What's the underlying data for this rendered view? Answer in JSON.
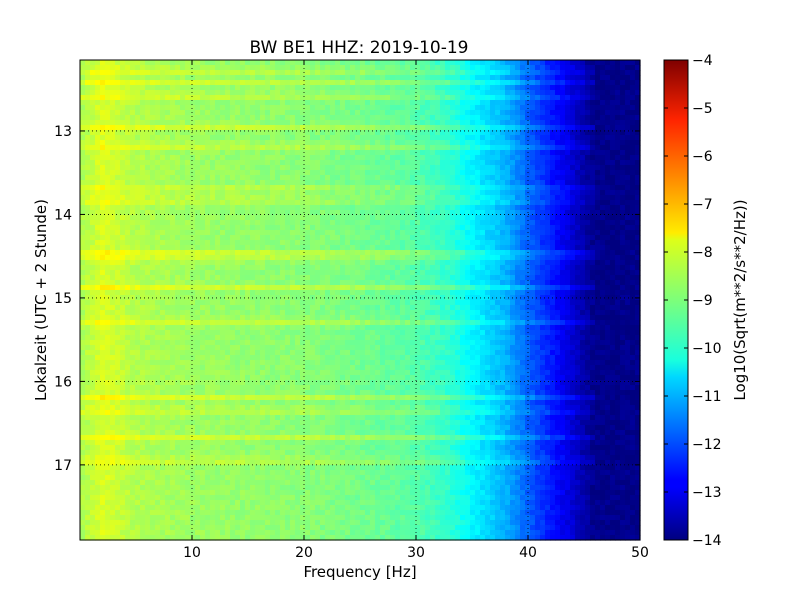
{
  "chart_data": {
    "type": "heatmap",
    "title": "BW BE1 HHZ: 2019-10-19",
    "xlabel": "Frequency [Hz]",
    "ylabel": "Lokalzeit (UTC + 2 Stunde)",
    "xlim": [
      0,
      50
    ],
    "ylim": [
      12.15,
      17.9
    ],
    "y_inverted": true,
    "x_ticks": [
      10,
      20,
      30,
      40,
      50
    ],
    "y_ticks": [
      13,
      14,
      15,
      16,
      17
    ],
    "x_tick_labels": [
      "10",
      "20",
      "30",
      "40",
      "50"
    ],
    "y_tick_labels": [
      "13",
      "14",
      "15",
      "16",
      "17"
    ],
    "grid": true,
    "colormap": "jet",
    "colorbar": {
      "label": "Log10(Sqrt(m**2/s**2/Hz))",
      "range": [
        -14,
        -4
      ],
      "ticks": [
        -4,
        -5,
        -6,
        -7,
        -8,
        -9,
        -10,
        -11,
        -12,
        -13,
        -14
      ],
      "tick_labels": [
        "−4",
        "−5",
        "−6",
        "−7",
        "−8",
        "−9",
        "−10",
        "−11",
        "−12",
        "−13",
        "−14"
      ]
    },
    "spectrum_profile": {
      "frequency_hz": [
        0,
        2,
        5,
        10,
        15,
        20,
        25,
        30,
        33,
        35,
        38,
        40,
        42,
        44,
        45,
        46,
        50
      ],
      "log10_amplitude": [
        -8.6,
        -8.1,
        -8.5,
        -8.7,
        -8.8,
        -8.9,
        -9.1,
        -9.4,
        -9.8,
        -10.3,
        -11.0,
        -11.8,
        -12.5,
        -13.2,
        -13.6,
        -13.9,
        -13.9
      ]
    },
    "bright_bands_hours": [
      12.28,
      12.43,
      12.58,
      12.95,
      13.18,
      13.7,
      13.83,
      14.45,
      14.53,
      14.88,
      15.28,
      16.2,
      16.35,
      16.68,
      16.95
    ]
  }
}
